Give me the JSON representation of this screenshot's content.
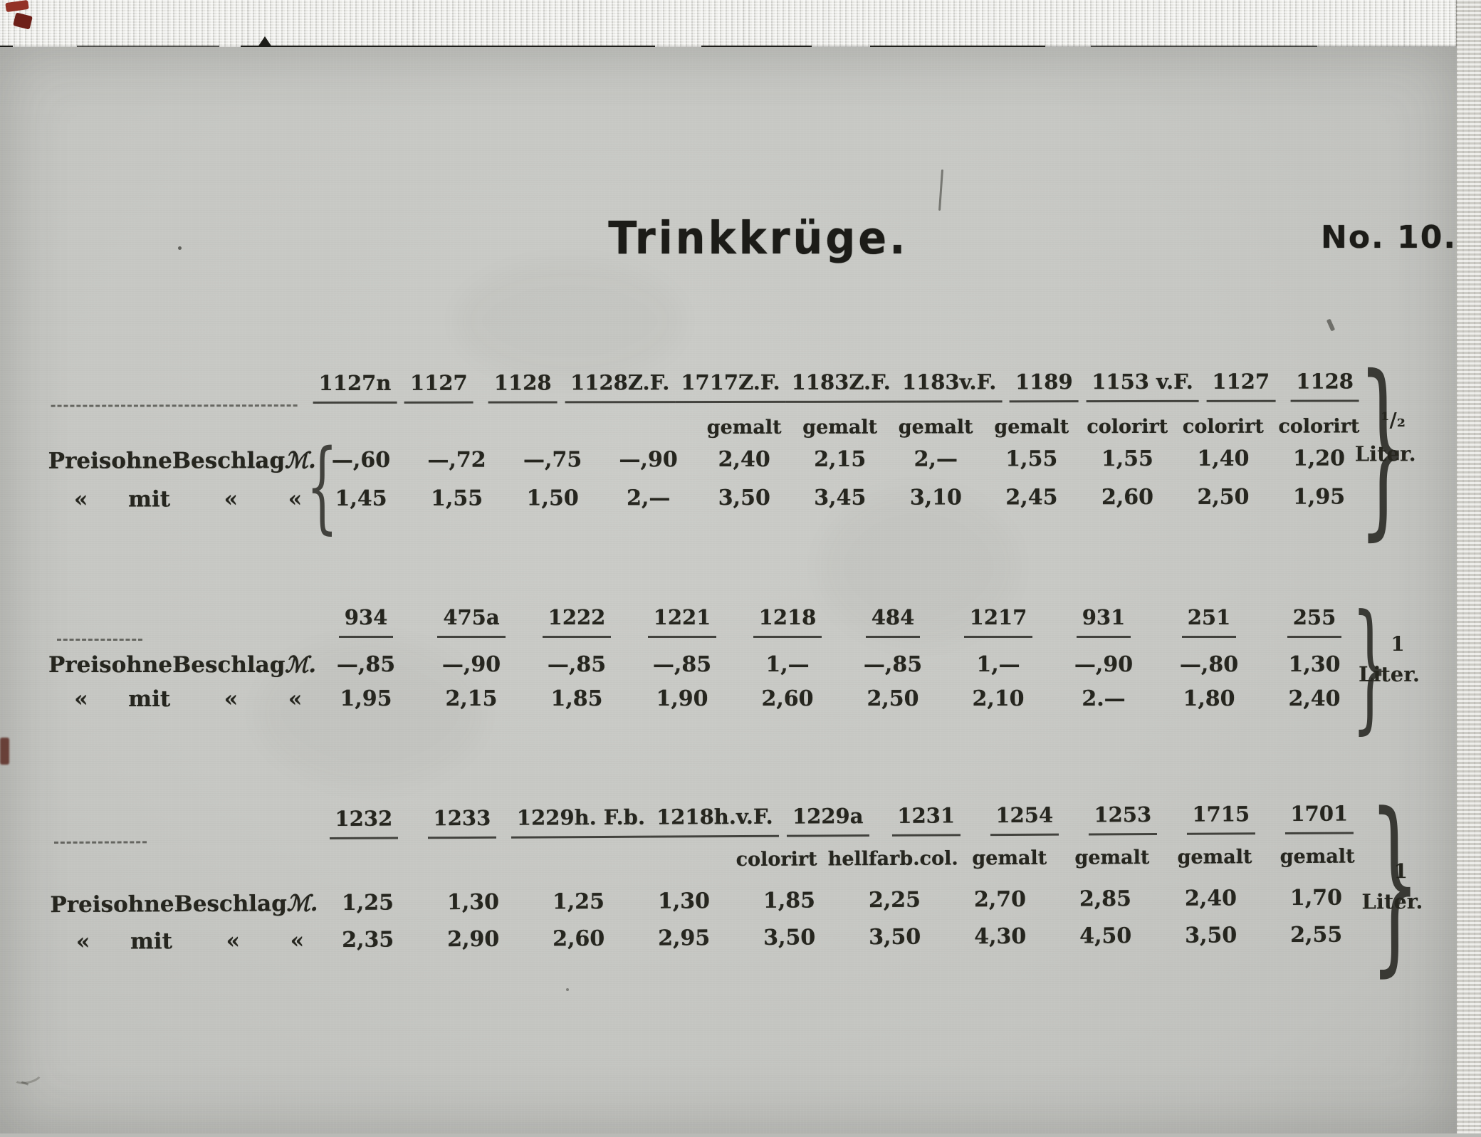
{
  "title": "Trinkkrüge.",
  "page_no": "No. 10.",
  "labels": {
    "price_without": [
      "Preis",
      "ohne",
      "Beschlag"
    ],
    "price_with_word": "mit",
    "ditto": "«",
    "currency": "ℳ."
  },
  "decor": {
    "right_brace": "}",
    "left_brace": "{"
  },
  "ink_color": "#26261f",
  "paper_color": "#c7c8c4",
  "tables": [
    {
      "volume": "¹/₂",
      "unit": "Liter.",
      "columns": [
        {
          "model": "1127n",
          "sub": "",
          "ohne": "—,60",
          "mit": "1,45"
        },
        {
          "model": "1127",
          "sub": "",
          "ohne": "—,72",
          "mit": "1,55"
        },
        {
          "model": "1128",
          "sub": "",
          "ohne": "—,75",
          "mit": "1,50"
        },
        {
          "model": "1128Z.F.",
          "sub": "",
          "ohne": "—,90",
          "mit": "2,—"
        },
        {
          "model": "1717Z.F.",
          "sub": "gemalt",
          "ohne": "2,40",
          "mit": "3,50"
        },
        {
          "model": "1183Z.F.",
          "sub": "gemalt",
          "ohne": "2,15",
          "mit": "3,45"
        },
        {
          "model": "1183v.F.",
          "sub": "gemalt",
          "ohne": "2,—",
          "mit": "3,10"
        },
        {
          "model": "1189",
          "sub": "gemalt",
          "ohne": "1,55",
          "mit": "2,45"
        },
        {
          "model": "1153 v.F.",
          "sub": "colorirt",
          "ohne": "1,55",
          "mit": "2,60"
        },
        {
          "model": "1127",
          "sub": "colorirt",
          "ohne": "1,40",
          "mit": "2,50"
        },
        {
          "model": "1128",
          "sub": "colorirt",
          "ohne": "1,20",
          "mit": "1,95"
        }
      ]
    },
    {
      "volume": "1",
      "unit": "Liter.",
      "columns": [
        {
          "model": "934",
          "sub": "",
          "ohne": "—,85",
          "mit": "1,95"
        },
        {
          "model": "475a",
          "sub": "",
          "ohne": "—,90",
          "mit": "2,15"
        },
        {
          "model": "1222",
          "sub": "",
          "ohne": "—,85",
          "mit": "1,85"
        },
        {
          "model": "1221",
          "sub": "",
          "ohne": "—,85",
          "mit": "1,90"
        },
        {
          "model": "1218",
          "sub": "",
          "ohne": "1,—",
          "mit": "2,60"
        },
        {
          "model": "484",
          "sub": "",
          "ohne": "—,85",
          "mit": "2,50"
        },
        {
          "model": "1217",
          "sub": "",
          "ohne": "1,—",
          "mit": "2,10"
        },
        {
          "model": "931",
          "sub": "",
          "ohne": "—,90",
          "mit": "2.—"
        },
        {
          "model": "251",
          "sub": "",
          "ohne": "—,80",
          "mit": "1,80"
        },
        {
          "model": "255",
          "sub": "",
          "ohne": "1,30",
          "mit": "2,40"
        }
      ]
    },
    {
      "volume": "1",
      "unit": "Liter.",
      "columns": [
        {
          "model": "1232",
          "sub": "",
          "ohne": "1,25",
          "mit": "2,35"
        },
        {
          "model": "1233",
          "sub": "",
          "ohne": "1,30",
          "mit": "2,90"
        },
        {
          "model": "1229h. F.b.",
          "sub": "",
          "ohne": "1,25",
          "mit": "2,60"
        },
        {
          "model": "1218h.v.F.",
          "sub": "",
          "ohne": "1,30",
          "mit": "2,95"
        },
        {
          "model": "1229a",
          "sub": "colorirt",
          "ohne": "1,85",
          "mit": "3,50"
        },
        {
          "model": "1231",
          "sub": "hellfarb.col.",
          "ohne": "2,25",
          "mit": "3,50"
        },
        {
          "model": "1254",
          "sub": "gemalt",
          "ohne": "2,70",
          "mit": "4,30"
        },
        {
          "model": "1253",
          "sub": "gemalt",
          "ohne": "2,85",
          "mit": "4,50"
        },
        {
          "model": "1715",
          "sub": "gemalt",
          "ohne": "2,40",
          "mit": "3,50"
        },
        {
          "model": "1701",
          "sub": "gemalt",
          "ohne": "1,70",
          "mit": "2,55"
        }
      ]
    }
  ]
}
